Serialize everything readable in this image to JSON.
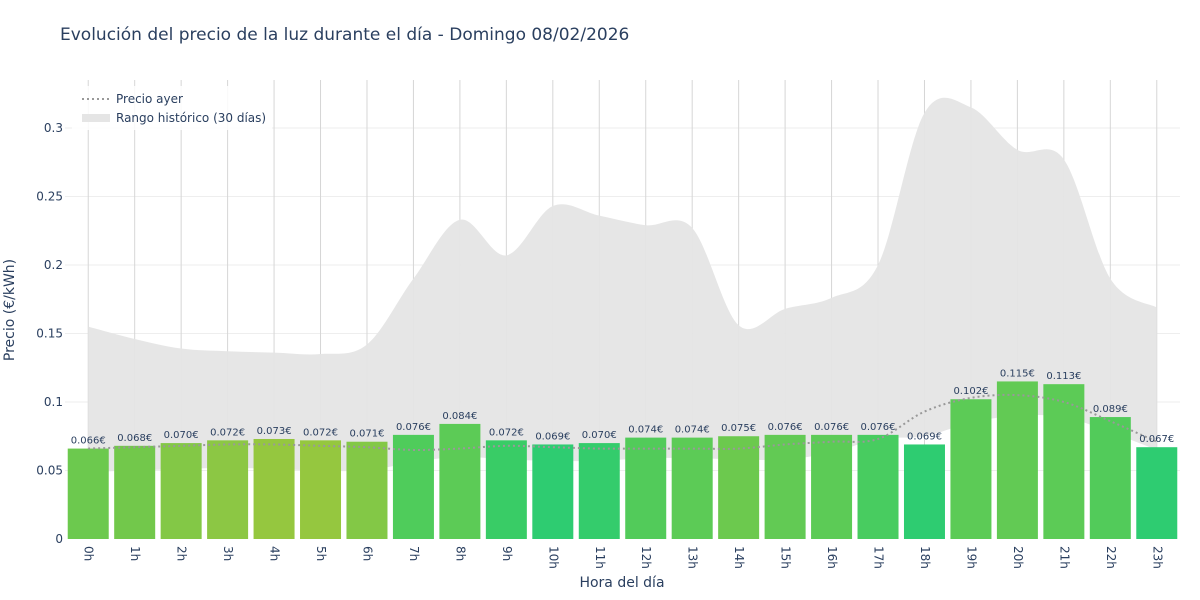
{
  "chart_data": {
    "type": "bar",
    "title": "Evolución del precio de la luz durante el día - Domingo 08/02/2026",
    "xlabel": "Hora del día",
    "ylabel": "Precio (€/kWh)",
    "ylim": [
      0,
      0.335
    ],
    "yticks": [
      0,
      0.05,
      0.1,
      0.15,
      0.2,
      0.25,
      0.3
    ],
    "ytick_labels": [
      "0",
      "0.05",
      "0.1",
      "0.15",
      "0.2",
      "0.25",
      "0.3"
    ],
    "categories": [
      "0h",
      "1h",
      "2h",
      "3h",
      "4h",
      "5h",
      "6h",
      "7h",
      "8h",
      "9h",
      "10h",
      "11h",
      "12h",
      "13h",
      "14h",
      "15h",
      "16h",
      "17h",
      "18h",
      "19h",
      "20h",
      "21h",
      "22h",
      "23h"
    ],
    "values": [
      0.066,
      0.068,
      0.07,
      0.072,
      0.073,
      0.072,
      0.071,
      0.076,
      0.084,
      0.072,
      0.069,
      0.07,
      0.074,
      0.074,
      0.075,
      0.076,
      0.076,
      0.076,
      0.069,
      0.102,
      0.115,
      0.113,
      0.089,
      0.067
    ],
    "bar_labels": [
      "0.066€",
      "0.068€",
      "0.070€",
      "0.072€",
      "0.073€",
      "0.072€",
      "0.071€",
      "0.076€",
      "0.084€",
      "0.072€",
      "0.069€",
      "0.070€",
      "0.074€",
      "0.074€",
      "0.075€",
      "0.076€",
      "0.076€",
      "0.076€",
      "0.069€",
      "0.102€",
      "0.115€",
      "0.113€",
      "0.089€",
      "0.067€"
    ],
    "bar_colors": [
      "#6cc94e",
      "#72c84b",
      "#83c846",
      "#8cc744",
      "#95c73f",
      "#95c73f",
      "#83c846",
      "#4fcc5b",
      "#5ccb56",
      "#39cc66",
      "#2ecc71",
      "#34cc6c",
      "#52cb5a",
      "#5ccb56",
      "#6cc94e",
      "#62ca54",
      "#5ccb56",
      "#48cc60",
      "#2ecc71",
      "#5ccb56",
      "#62ca54",
      "#5ccb56",
      "#52cb5a",
      "#2ecc71"
    ],
    "series": [
      {
        "name": "Precio ayer",
        "style": "dotted",
        "color": "#999999",
        "values": [
          0.066,
          0.067,
          0.068,
          0.069,
          0.069,
          0.068,
          0.067,
          0.065,
          0.066,
          0.068,
          0.067,
          0.066,
          0.066,
          0.066,
          0.066,
          0.069,
          0.071,
          0.073,
          0.093,
          0.103,
          0.105,
          0.1,
          0.086,
          0.071
        ]
      },
      {
        "name": "Rango histórico (30 días)",
        "type": "area",
        "color": "#e5e5e5",
        "upper": [
          0.155,
          0.146,
          0.139,
          0.137,
          0.136,
          0.135,
          0.142,
          0.19,
          0.233,
          0.207,
          0.243,
          0.236,
          0.229,
          0.227,
          0.156,
          0.168,
          0.176,
          0.2,
          0.311,
          0.315,
          0.284,
          0.277,
          0.19,
          0.169
        ],
        "lower": [
          0.049,
          0.05,
          0.051,
          0.052,
          0.051,
          0.05,
          0.05,
          0.056,
          0.06,
          0.058,
          0.057,
          0.057,
          0.059,
          0.059,
          0.058,
          0.058,
          0.063,
          0.073,
          0.075,
          0.085,
          0.09,
          0.089,
          0.078,
          0.065
        ]
      }
    ],
    "grid": true,
    "legend_position": "top-left"
  }
}
